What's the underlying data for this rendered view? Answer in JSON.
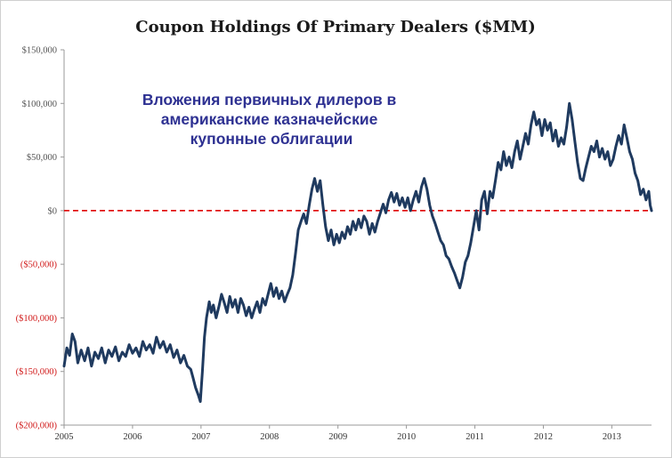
{
  "chart_data": {
    "type": "line",
    "title": "Coupon Holdings Of Primary Dealers ($MM)",
    "annotation": [
      "Вложения первичных дилеров в",
      "американские казначейские",
      "купонные облигации"
    ],
    "xlabel": "",
    "ylabel": "",
    "ylim": [
      -200000,
      150000
    ],
    "xlim": [
      2005,
      2013.58
    ],
    "yticks": [
      {
        "value": 150000,
        "label": "$150,000"
      },
      {
        "value": 100000,
        "label": "$100,000"
      },
      {
        "value": 50000,
        "label": "$50,000"
      },
      {
        "value": 0,
        "label": "$0"
      },
      {
        "value": -50000,
        "label": "($50,000)"
      },
      {
        "value": -100000,
        "label": "($100,000)"
      },
      {
        "value": -150000,
        "label": "($150,000)"
      },
      {
        "value": -200000,
        "label": "($200,000)"
      }
    ],
    "xticks": [
      {
        "value": 2005,
        "label": "2005"
      },
      {
        "value": 2006,
        "label": "2006"
      },
      {
        "value": 2007,
        "label": "2007"
      },
      {
        "value": 2008,
        "label": "2008"
      },
      {
        "value": 2009,
        "label": "2009"
      },
      {
        "value": 2010,
        "label": "2010"
      },
      {
        "value": 2011,
        "label": "2011"
      },
      {
        "value": 2012,
        "label": "2012"
      },
      {
        "value": 2013,
        "label": "2013"
      }
    ],
    "reference_line": {
      "value": 0,
      "style": "dashed",
      "color": "#e00000"
    },
    "colors": {
      "series": "#1f3a5f",
      "positive_tick": "#555555",
      "negative_tick": "#d11a1a",
      "annotation": "#2e3192",
      "axis": "#999999"
    },
    "series": [
      {
        "name": "Coupon Holdings",
        "points": [
          [
            2005.0,
            -145000
          ],
          [
            2005.04,
            -128000
          ],
          [
            2005.08,
            -135000
          ],
          [
            2005.12,
            -115000
          ],
          [
            2005.16,
            -122000
          ],
          [
            2005.2,
            -142000
          ],
          [
            2005.25,
            -130000
          ],
          [
            2005.3,
            -140000
          ],
          [
            2005.35,
            -128000
          ],
          [
            2005.4,
            -145000
          ],
          [
            2005.45,
            -132000
          ],
          [
            2005.5,
            -138000
          ],
          [
            2005.55,
            -128000
          ],
          [
            2005.6,
            -142000
          ],
          [
            2005.65,
            -130000
          ],
          [
            2005.7,
            -136000
          ],
          [
            2005.75,
            -127000
          ],
          [
            2005.8,
            -140000
          ],
          [
            2005.85,
            -132000
          ],
          [
            2005.9,
            -136000
          ],
          [
            2005.95,
            -125000
          ],
          [
            2006.0,
            -133000
          ],
          [
            2006.05,
            -128000
          ],
          [
            2006.1,
            -136000
          ],
          [
            2006.15,
            -122000
          ],
          [
            2006.2,
            -130000
          ],
          [
            2006.25,
            -125000
          ],
          [
            2006.3,
            -133000
          ],
          [
            2006.35,
            -118000
          ],
          [
            2006.4,
            -128000
          ],
          [
            2006.45,
            -122000
          ],
          [
            2006.5,
            -132000
          ],
          [
            2006.55,
            -125000
          ],
          [
            2006.6,
            -137000
          ],
          [
            2006.65,
            -130000
          ],
          [
            2006.7,
            -142000
          ],
          [
            2006.75,
            -135000
          ],
          [
            2006.8,
            -145000
          ],
          [
            2006.85,
            -148000
          ],
          [
            2006.88,
            -155000
          ],
          [
            2006.92,
            -165000
          ],
          [
            2006.96,
            -172000
          ],
          [
            2006.99,
            -178000
          ],
          [
            2007.02,
            -150000
          ],
          [
            2007.05,
            -118000
          ],
          [
            2007.08,
            -100000
          ],
          [
            2007.12,
            -85000
          ],
          [
            2007.15,
            -95000
          ],
          [
            2007.18,
            -88000
          ],
          [
            2007.22,
            -100000
          ],
          [
            2007.26,
            -90000
          ],
          [
            2007.3,
            -78000
          ],
          [
            2007.34,
            -86000
          ],
          [
            2007.38,
            -95000
          ],
          [
            2007.42,
            -80000
          ],
          [
            2007.46,
            -90000
          ],
          [
            2007.5,
            -83000
          ],
          [
            2007.54,
            -95000
          ],
          [
            2007.58,
            -82000
          ],
          [
            2007.62,
            -88000
          ],
          [
            2007.66,
            -98000
          ],
          [
            2007.7,
            -90000
          ],
          [
            2007.74,
            -100000
          ],
          [
            2007.78,
            -92000
          ],
          [
            2007.82,
            -85000
          ],
          [
            2007.86,
            -95000
          ],
          [
            2007.9,
            -82000
          ],
          [
            2007.94,
            -88000
          ],
          [
            2007.98,
            -78000
          ],
          [
            2008.02,
            -68000
          ],
          [
            2008.06,
            -80000
          ],
          [
            2008.1,
            -72000
          ],
          [
            2008.14,
            -82000
          ],
          [
            2008.18,
            -75000
          ],
          [
            2008.22,
            -85000
          ],
          [
            2008.26,
            -78000
          ],
          [
            2008.3,
            -72000
          ],
          [
            2008.34,
            -60000
          ],
          [
            2008.38,
            -40000
          ],
          [
            2008.42,
            -18000
          ],
          [
            2008.46,
            -10000
          ],
          [
            2008.5,
            -3000
          ],
          [
            2008.54,
            -12000
          ],
          [
            2008.58,
            5000
          ],
          [
            2008.62,
            20000
          ],
          [
            2008.66,
            30000
          ],
          [
            2008.7,
            18000
          ],
          [
            2008.74,
            28000
          ],
          [
            2008.78,
            5000
          ],
          [
            2008.82,
            -15000
          ],
          [
            2008.86,
            -28000
          ],
          [
            2008.9,
            -18000
          ],
          [
            2008.94,
            -32000
          ],
          [
            2008.98,
            -22000
          ],
          [
            2009.02,
            -30000
          ],
          [
            2009.06,
            -20000
          ],
          [
            2009.1,
            -26000
          ],
          [
            2009.14,
            -15000
          ],
          [
            2009.18,
            -22000
          ],
          [
            2009.22,
            -10000
          ],
          [
            2009.26,
            -18000
          ],
          [
            2009.3,
            -8000
          ],
          [
            2009.34,
            -16000
          ],
          [
            2009.38,
            -5000
          ],
          [
            2009.42,
            -10000
          ],
          [
            2009.46,
            -22000
          ],
          [
            2009.5,
            -12000
          ],
          [
            2009.54,
            -20000
          ],
          [
            2009.58,
            -10000
          ],
          [
            2009.62,
            -2000
          ],
          [
            2009.66,
            6000
          ],
          [
            2009.7,
            -2000
          ],
          [
            2009.74,
            10000
          ],
          [
            2009.78,
            17000
          ],
          [
            2009.82,
            8000
          ],
          [
            2009.86,
            16000
          ],
          [
            2009.9,
            5000
          ],
          [
            2009.94,
            12000
          ],
          [
            2009.98,
            3000
          ],
          [
            2010.02,
            12000
          ],
          [
            2010.06,
            0
          ],
          [
            2010.1,
            10000
          ],
          [
            2010.14,
            18000
          ],
          [
            2010.18,
            8000
          ],
          [
            2010.22,
            22000
          ],
          [
            2010.26,
            30000
          ],
          [
            2010.3,
            20000
          ],
          [
            2010.34,
            5000
          ],
          [
            2010.38,
            -5000
          ],
          [
            2010.42,
            -12000
          ],
          [
            2010.46,
            -20000
          ],
          [
            2010.5,
            -28000
          ],
          [
            2010.54,
            -32000
          ],
          [
            2010.58,
            -42000
          ],
          [
            2010.62,
            -45000
          ],
          [
            2010.66,
            -52000
          ],
          [
            2010.7,
            -58000
          ],
          [
            2010.74,
            -65000
          ],
          [
            2010.78,
            -72000
          ],
          [
            2010.82,
            -62000
          ],
          [
            2010.86,
            -48000
          ],
          [
            2010.9,
            -42000
          ],
          [
            2010.94,
            -30000
          ],
          [
            2010.98,
            -15000
          ],
          [
            2011.02,
            0
          ],
          [
            2011.06,
            -18000
          ],
          [
            2011.1,
            10000
          ],
          [
            2011.14,
            18000
          ],
          [
            2011.18,
            -3000
          ],
          [
            2011.22,
            18000
          ],
          [
            2011.26,
            12000
          ],
          [
            2011.3,
            28000
          ],
          [
            2011.34,
            45000
          ],
          [
            2011.38,
            38000
          ],
          [
            2011.42,
            55000
          ],
          [
            2011.46,
            42000
          ],
          [
            2011.5,
            50000
          ],
          [
            2011.54,
            40000
          ],
          [
            2011.58,
            55000
          ],
          [
            2011.62,
            65000
          ],
          [
            2011.66,
            48000
          ],
          [
            2011.7,
            60000
          ],
          [
            2011.74,
            72000
          ],
          [
            2011.78,
            62000
          ],
          [
            2011.82,
            80000
          ],
          [
            2011.86,
            92000
          ],
          [
            2011.9,
            80000
          ],
          [
            2011.94,
            85000
          ],
          [
            2011.98,
            70000
          ],
          [
            2012.02,
            85000
          ],
          [
            2012.06,
            75000
          ],
          [
            2012.1,
            82000
          ],
          [
            2012.14,
            65000
          ],
          [
            2012.18,
            75000
          ],
          [
            2012.22,
            60000
          ],
          [
            2012.26,
            68000
          ],
          [
            2012.3,
            62000
          ],
          [
            2012.34,
            78000
          ],
          [
            2012.38,
            100000
          ],
          [
            2012.42,
            85000
          ],
          [
            2012.46,
            65000
          ],
          [
            2012.5,
            45000
          ],
          [
            2012.54,
            30000
          ],
          [
            2012.58,
            28000
          ],
          [
            2012.62,
            40000
          ],
          [
            2012.66,
            50000
          ],
          [
            2012.7,
            60000
          ],
          [
            2012.74,
            55000
          ],
          [
            2012.78,
            65000
          ],
          [
            2012.82,
            50000
          ],
          [
            2012.86,
            58000
          ],
          [
            2012.9,
            48000
          ],
          [
            2012.94,
            55000
          ],
          [
            2012.98,
            42000
          ],
          [
            2013.02,
            48000
          ],
          [
            2013.06,
            60000
          ],
          [
            2013.1,
            70000
          ],
          [
            2013.14,
            62000
          ],
          [
            2013.18,
            80000
          ],
          [
            2013.22,
            68000
          ],
          [
            2013.26,
            55000
          ],
          [
            2013.3,
            48000
          ],
          [
            2013.34,
            35000
          ],
          [
            2013.38,
            28000
          ],
          [
            2013.42,
            15000
          ],
          [
            2013.46,
            20000
          ],
          [
            2013.5,
            10000
          ],
          [
            2013.54,
            18000
          ],
          [
            2013.56,
            5000
          ],
          [
            2013.58,
            0
          ]
        ]
      }
    ]
  }
}
